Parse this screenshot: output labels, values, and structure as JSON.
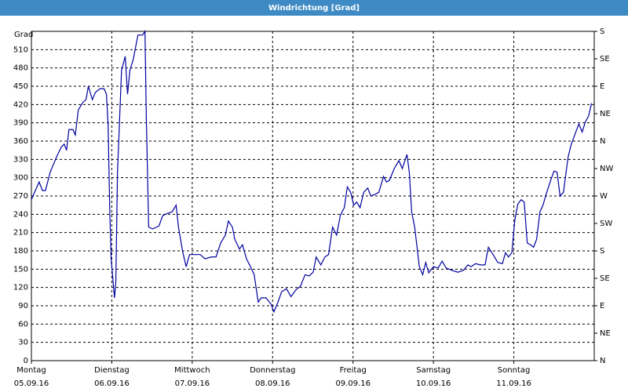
{
  "chart_data": {
    "type": "line",
    "title": "Windrichtung [Grad]",
    "ylabel": "Grad",
    "x": [
      0,
      2.3,
      3.3,
      4.2,
      5.6,
      7.5,
      8.9,
      9.8,
      10.5,
      11.2,
      12.4,
      13.1,
      14,
      15.4,
      16.3,
      17,
      18.2,
      19.1,
      20.5,
      21.7,
      22.4,
      22.9,
      23.4,
      23.8,
      24.8,
      25.2,
      25.7,
      26.9,
      28,
      28.7,
      29.4,
      30.4,
      31.8,
      33.2,
      33.9,
      34.3,
      35,
      36.2,
      38.1,
      39.2,
      40.9,
      42,
      43.2,
      43.9,
      45.1,
      46.2,
      47.2,
      48.6,
      50.4,
      51.8,
      53.7,
      55.1,
      56.5,
      57.9,
      58.8,
      60,
      60.7,
      62.1,
      63,
      64.2,
      65.4,
      66.5,
      67.7,
      68.6,
      70,
      71.5,
      72.4,
      73.6,
      74.7,
      76.1,
      77.5,
      78.9,
      80.3,
      81.7,
      82.9,
      84.1,
      85,
      86.4,
      87.6,
      88.7,
      89.9,
      91.1,
      92.2,
      93.4,
      94.3,
      95.3,
      96.2,
      97.1,
      98.1,
      99.2,
      100.4,
      101.3,
      102.3,
      103.7,
      105.1,
      106,
      106.9,
      108.3,
      109.7,
      110.7,
      112.1,
      112.8,
      113.5,
      114.4,
      115.8,
      116.8,
      117.7,
      118.6,
      120,
      121.4,
      122.6,
      123.8,
      125.6,
      127.3,
      128.9,
      130.3,
      131.2,
      132.6,
      134,
      135.4,
      136.4,
      137.8,
      139.2,
      140.6,
      141.5,
      142.4,
      143.4,
      144.3,
      145.2,
      146.2,
      147.1,
      148,
      149,
      149.9,
      150.8,
      151.8,
      152.7,
      153.6,
      155,
      156,
      156.9,
      157.8,
      158.8,
      160.2,
      161.1,
      162.5,
      163.4,
      164.4,
      165.3,
      166.3,
      167.2
    ],
    "values": [
      264,
      293,
      279,
      279,
      309,
      334,
      350,
      355,
      345,
      379,
      379,
      370,
      411,
      424,
      428,
      450,
      428,
      440,
      446,
      446,
      437,
      386,
      244,
      167,
      103,
      129,
      309,
      476,
      499,
      437,
      476,
      494,
      534,
      534,
      540,
      399,
      219,
      216,
      221,
      238,
      242,
      244,
      255,
      219,
      180,
      154,
      174,
      174,
      174,
      167,
      170,
      170,
      193,
      206,
      229,
      219,
      199,
      183,
      190,
      167,
      154,
      141,
      96,
      103,
      103,
      93,
      80,
      96,
      113,
      118,
      105,
      116,
      122,
      141,
      139,
      145,
      170,
      157,
      170,
      174,
      219,
      206,
      238,
      251,
      285,
      276,
      255,
      260,
      251,
      276,
      283,
      270,
      272,
      276,
      302,
      293,
      296,
      315,
      328,
      315,
      338,
      309,
      244,
      219,
      154,
      141,
      161,
      144,
      154,
      152,
      163,
      152,
      148,
      145,
      148,
      157,
      154,
      159,
      157,
      157,
      186,
      174,
      161,
      159,
      177,
      170,
      177,
      231,
      257,
      264,
      260,
      193,
      190,
      186,
      199,
      244,
      255,
      272,
      296,
      311,
      309,
      270,
      276,
      334,
      354,
      375,
      388,
      375,
      391,
      401,
      422
    ],
    "color": "#0000a0",
    "xlim": [
      0,
      168
    ],
    "xticks": [
      {
        "value": 0,
        "label": "Montag"
      },
      {
        "value": 24,
        "label": "Dienstag"
      },
      {
        "value": 48,
        "label": "Mittwoch"
      },
      {
        "value": 72,
        "label": "Donnerstag"
      },
      {
        "value": 96,
        "label": "Freitag"
      },
      {
        "value": 120,
        "label": "Samstag"
      },
      {
        "value": 144,
        "label": "Sonntag"
      }
    ],
    "xtick_dates": [
      "05.09.16",
      "06.09.16",
      "07.09.16",
      "08.09.16",
      "09.09.16",
      "10.09.16",
      "11.09.16"
    ],
    "ylim": [
      0,
      540
    ],
    "yticks": [
      0,
      30,
      60,
      90,
      120,
      150,
      180,
      210,
      240,
      270,
      300,
      330,
      360,
      390,
      420,
      450,
      480,
      510
    ],
    "y2lim": [
      0,
      540
    ],
    "y2ticks": [
      {
        "value": 0,
        "label": "N"
      },
      {
        "value": 45,
        "label": "NE"
      },
      {
        "value": 90,
        "label": "E"
      },
      {
        "value": 135,
        "label": "SE"
      },
      {
        "value": 180,
        "label": "S"
      },
      {
        "value": 225,
        "label": "SW"
      },
      {
        "value": 270,
        "label": "W"
      },
      {
        "value": 315,
        "label": "NW"
      },
      {
        "value": 360,
        "label": "N"
      },
      {
        "value": 405,
        "label": "NE"
      },
      {
        "value": 450,
        "label": "E"
      },
      {
        "value": 495,
        "label": "SE"
      },
      {
        "value": 540,
        "label": "S"
      }
    ],
    "grid": true
  }
}
